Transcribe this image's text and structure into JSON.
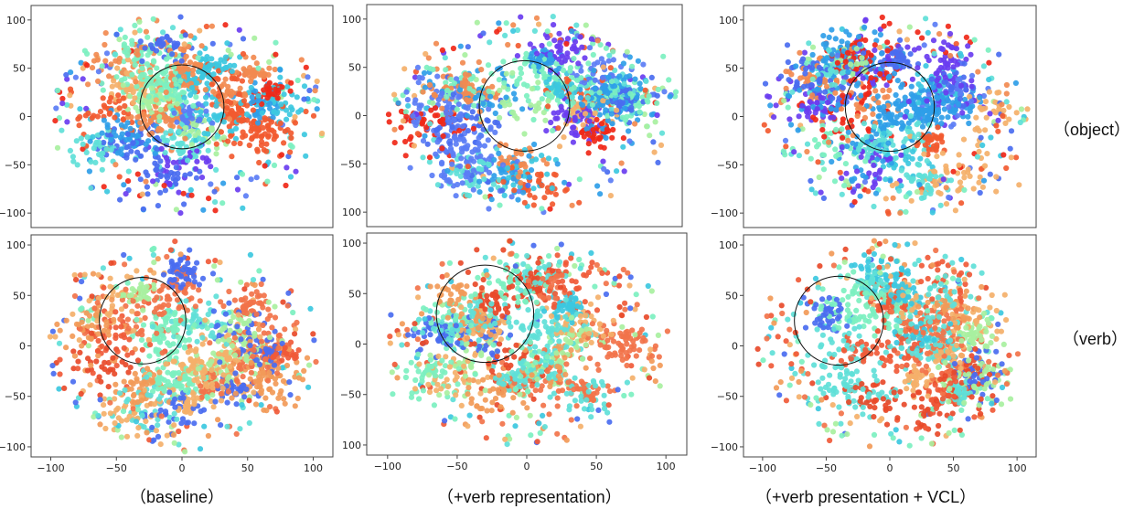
{
  "figure": {
    "row_labels": [
      "（object）",
      "（verb）"
    ],
    "column_captions": [
      "（baseline）",
      "（+verb representation）",
      "（+verb presentation + VCL）"
    ]
  },
  "palettes": {
    "object": [
      "#5b7df5",
      "#4a6cf0",
      "#6a3df0",
      "#2f9ee8",
      "#3cc8e0",
      "#5fe0d8",
      "#7cf0c0",
      "#a8f0a0",
      "#f4b06a",
      "#f28a50",
      "#f25a30",
      "#f02818"
    ],
    "verb": [
      "#7cf0c0",
      "#5fe0d8",
      "#a8f0a0",
      "#f4b06a",
      "#f29a58",
      "#f2734a",
      "#f05a38",
      "#e84a2a",
      "#4a6cf0",
      "#3cc8e0"
    ]
  },
  "chart_data": [
    {
      "type": "scatter",
      "name": "t-SNE object baseline",
      "row": "object",
      "column": "baseline",
      "xlim": [
        -120,
        110
      ],
      "ylim": [
        -115,
        115
      ],
      "y_ticks": [
        100,
        50,
        0,
        -50,
        -100
      ],
      "x_ticks": [],
      "circle": {
        "cx": -5,
        "cy": 10,
        "r": 32
      },
      "palette": "object",
      "seed": 11
    },
    {
      "type": "scatter",
      "name": "t-SNE object verb-representation",
      "row": "object",
      "column": "+verb representation",
      "xlim": [
        -120,
        110
      ],
      "ylim": [
        -115,
        115
      ],
      "y_ticks": [
        100,
        50,
        0,
        -50,
        -100
      ],
      "x_ticks": [],
      "circle": {
        "cx": -5,
        "cy": 10,
        "r": 33
      },
      "palette": "object",
      "seed": 23
    },
    {
      "type": "scatter",
      "name": "t-SNE object VCL",
      "row": "object",
      "column": "+verb presentation + VCL",
      "xlim": [
        -120,
        110
      ],
      "ylim": [
        -115,
        115
      ],
      "y_ticks": [
        100,
        50,
        0,
        -50,
        -100
      ],
      "x_ticks": [],
      "circle": {
        "cx": -5,
        "cy": 10,
        "r": 35
      },
      "palette": "object",
      "seed": 37
    },
    {
      "type": "scatter",
      "name": "t-SNE verb baseline",
      "row": "verb",
      "column": "baseline",
      "xlim": [
        -115,
        115
      ],
      "ylim": [
        -110,
        110
      ],
      "y_ticks": [
        100,
        50,
        0,
        -50,
        -100
      ],
      "x_ticks": [
        -100,
        -50,
        0,
        50,
        100
      ],
      "circle": {
        "cx": -30,
        "cy": 25,
        "r": 33
      },
      "palette": "verb",
      "seed": 41
    },
    {
      "type": "scatter",
      "name": "t-SNE verb verb-representation",
      "row": "verb",
      "column": "+verb representation",
      "xlim": [
        -115,
        115
      ],
      "ylim": [
        -110,
        110
      ],
      "y_ticks": [
        100,
        50,
        0,
        -50,
        -100
      ],
      "x_ticks": [
        -100,
        -50,
        0,
        50,
        100
      ],
      "circle": {
        "cx": -30,
        "cy": 30,
        "r": 35
      },
      "palette": "verb",
      "seed": 53
    },
    {
      "type": "scatter",
      "name": "t-SNE verb VCL",
      "row": "verb",
      "column": "+verb presentation + VCL",
      "xlim": [
        -115,
        115
      ],
      "ylim": [
        -110,
        110
      ],
      "y_ticks": [
        100,
        50,
        0,
        -50,
        -100
      ],
      "x_ticks": [
        -100,
        -50,
        0,
        50,
        100
      ],
      "circle": {
        "cx": -40,
        "cy": 25,
        "r": 35
      },
      "palette": "verb",
      "seed": 67
    }
  ]
}
